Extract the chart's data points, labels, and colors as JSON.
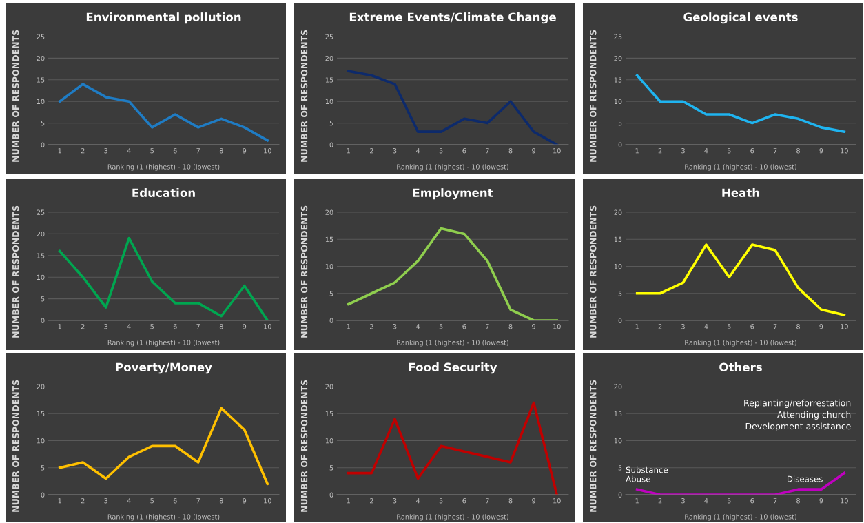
{
  "chart_data": [
    {
      "type": "line",
      "title": "Environmental pollution",
      "xlabel": "Ranking (1 (highest) - 10 (lowest)",
      "ylabel": "NUMBER OF RESPONDENTS",
      "categories": [
        "1",
        "2",
        "3",
        "4",
        "5",
        "6",
        "7",
        "8",
        "9",
        "10"
      ],
      "series": [
        {
          "color": "#1f7cc4",
          "values": [
            10,
            14,
            11,
            10,
            4,
            7,
            4,
            6,
            4,
            1
          ]
        }
      ],
      "ylim": [
        0,
        25
      ],
      "yticks": [
        0,
        5,
        10,
        15,
        20,
        25
      ],
      "grid": "y"
    },
    {
      "type": "line",
      "title": "Extreme Events/Climate Change",
      "xlabel": "Ranking (1 (highest) - 10 (lowest)",
      "ylabel": "NUMBER OF RESPONDENTS",
      "categories": [
        "1",
        "2",
        "3",
        "4",
        "5",
        "6",
        "7",
        "8",
        "9",
        "10"
      ],
      "series": [
        {
          "color": "#0d2a6b",
          "values": [
            17,
            16,
            14,
            3,
            3,
            6,
            5,
            10,
            3,
            0
          ]
        }
      ],
      "ylim": [
        0,
        25
      ],
      "yticks": [
        0,
        5,
        10,
        15,
        20,
        25
      ],
      "grid": "y"
    },
    {
      "type": "line",
      "title": "Geological events",
      "xlabel": "Ranking (1 (highest) - 10 (lowest)",
      "ylabel": "NUMBER OF RESPONDENTS",
      "categories": [
        "1",
        "2",
        "3",
        "4",
        "5",
        "6",
        "7",
        "8",
        "9",
        "10"
      ],
      "series": [
        {
          "color": "#1fb4f0",
          "values": [
            16,
            10,
            10,
            7,
            7,
            5,
            7,
            6,
            4,
            3
          ]
        }
      ],
      "ylim": [
        0,
        25
      ],
      "yticks": [
        0,
        5,
        10,
        15,
        20,
        25
      ],
      "grid": "y"
    },
    {
      "type": "line",
      "title": "Education",
      "xlabel": "Ranking (1 (highest) - 10 (lowest)",
      "ylabel": "NUMBER OF RESPONDENTS",
      "categories": [
        "1",
        "2",
        "3",
        "4",
        "5",
        "6",
        "7",
        "8",
        "9",
        "10"
      ],
      "series": [
        {
          "color": "#00a650",
          "values": [
            16,
            10,
            3,
            19,
            9,
            4,
            4,
            1,
            8,
            0
          ]
        }
      ],
      "ylim": [
        0,
        25
      ],
      "yticks": [
        0,
        5,
        10,
        15,
        20,
        25
      ],
      "grid": "y"
    },
    {
      "type": "line",
      "title": "Employment",
      "xlabel": "Ranking (1 (highest) - 10 (lowest)",
      "ylabel": "NUMBER OF RESPONDENTS",
      "categories": [
        "1",
        "2",
        "3",
        "4",
        "5",
        "6",
        "7",
        "8",
        "9",
        "10"
      ],
      "series": [
        {
          "color": "#8fce4e",
          "values": [
            3,
            5,
            7,
            11,
            17,
            16,
            11,
            2,
            0,
            0
          ]
        }
      ],
      "ylim": [
        0,
        20
      ],
      "yticks": [
        0,
        5,
        10,
        15,
        20
      ],
      "grid": "y"
    },
    {
      "type": "line",
      "title": "Heath",
      "xlabel": "Ranking (1 (highest) - 10 (lowest)",
      "ylabel": "NUMBER OF RESPONDENTS",
      "categories": [
        "1",
        "2",
        "3",
        "4",
        "5",
        "6",
        "7",
        "8",
        "9",
        "10"
      ],
      "series": [
        {
          "color": "#ffff00",
          "values": [
            5,
            5,
            7,
            14,
            8,
            14,
            13,
            6,
            2,
            1
          ]
        }
      ],
      "ylim": [
        0,
        20
      ],
      "yticks": [
        0,
        5,
        10,
        15,
        20
      ],
      "grid": "y"
    },
    {
      "type": "line",
      "title": "Poverty/Money",
      "xlabel": "Ranking (1 (highest) - 10 (lowest)",
      "ylabel": "NUMBER OF RESPONDENTS",
      "categories": [
        "1",
        "2",
        "3",
        "4",
        "5",
        "6",
        "7",
        "8",
        "9",
        "10"
      ],
      "series": [
        {
          "color": "#ffc000",
          "values": [
            5,
            6,
            3,
            7,
            9,
            9,
            6,
            16,
            12,
            2
          ]
        }
      ],
      "ylim": [
        0,
        20
      ],
      "yticks": [
        0,
        5,
        10,
        15,
        20
      ],
      "grid": "y"
    },
    {
      "type": "line",
      "title": "Food Security",
      "xlabel": "Ranking (1 (highest) - 10 (lowest)",
      "ylabel": "NUMBER OF RESPONDENTS",
      "categories": [
        "1",
        "2",
        "3",
        "4",
        "5",
        "6",
        "7",
        "8",
        "9",
        "10"
      ],
      "series": [
        {
          "color": "#c00000",
          "values": [
            4,
            4,
            14,
            3,
            9,
            8,
            7,
            6,
            17,
            0
          ]
        }
      ],
      "ylim": [
        0,
        20
      ],
      "yticks": [
        0,
        5,
        10,
        15,
        20
      ],
      "grid": "y"
    },
    {
      "type": "line",
      "title": "Others",
      "xlabel": "Ranking (1 (highest) - 10 (lowest)",
      "ylabel": "NUMBER OF RESPONDENTS",
      "categories": [
        "1",
        "2",
        "3",
        "4",
        "5",
        "6",
        "7",
        "8",
        "9",
        "10"
      ],
      "series": [
        {
          "color": "#c000c0",
          "values": [
            1,
            0,
            0,
            0,
            0,
            0,
            0,
            1,
            1,
            4
          ]
        }
      ],
      "ylim": [
        0,
        20
      ],
      "yticks": [
        0,
        5,
        10,
        15,
        20
      ],
      "grid": "y",
      "annotations": [
        "Replanting/reforrestation\nAttending church\nDevelopment assistance",
        {
          "text": "Substance\nAbuse",
          "x": "1",
          "y": 1
        },
        {
          "text": "Diseases",
          "x": "8",
          "y": 1
        }
      ]
    }
  ]
}
